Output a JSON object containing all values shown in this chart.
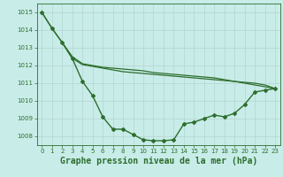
{
  "background_color": "#c8ece8",
  "grid_color": "#b8d8d4",
  "line_color": "#2d6e2d",
  "title": "Graphe pression niveau de la mer (hPa)",
  "title_fontsize": 7,
  "xlim": [
    -0.5,
    23.5
  ],
  "ylim": [
    1007.5,
    1015.5
  ],
  "yticks": [
    1008,
    1009,
    1010,
    1011,
    1012,
    1013,
    1014,
    1015
  ],
  "xticks": [
    0,
    1,
    2,
    3,
    4,
    5,
    6,
    7,
    8,
    9,
    10,
    11,
    12,
    13,
    14,
    15,
    16,
    17,
    18,
    19,
    20,
    21,
    22,
    23
  ],
  "series": [
    {
      "x": [
        0,
        1,
        2,
        3,
        4,
        5,
        6,
        7,
        8,
        9,
        10,
        11,
        12,
        13,
        14,
        15,
        16,
        17,
        18,
        19,
        20,
        21,
        22,
        23
      ],
      "y": [
        1015.0,
        1014.1,
        1013.3,
        1012.4,
        1011.1,
        1010.3,
        1009.1,
        1008.4,
        1008.4,
        1008.1,
        1007.8,
        1007.75,
        1007.75,
        1007.8,
        1008.7,
        1008.8,
        1009.0,
        1009.2,
        1009.1,
        1009.3,
        1009.8,
        1010.5,
        1010.6,
        1010.7
      ],
      "marker": "D",
      "marker_size": 2.0,
      "linewidth": 1.0,
      "zorder": 3
    },
    {
      "x": [
        0,
        1,
        2,
        3,
        4,
        5,
        6,
        7,
        8,
        9,
        10,
        11,
        12,
        13,
        14,
        15,
        16,
        17,
        18,
        19,
        20,
        21,
        22,
        23
      ],
      "y": [
        1015.0,
        1014.1,
        1013.3,
        1012.5,
        1012.1,
        1012.0,
        1011.9,
        1011.85,
        1011.8,
        1011.75,
        1011.7,
        1011.6,
        1011.55,
        1011.5,
        1011.45,
        1011.4,
        1011.35,
        1011.3,
        1011.2,
        1011.1,
        1011.0,
        1010.9,
        1010.8,
        1010.7
      ],
      "marker": null,
      "marker_size": 0,
      "linewidth": 0.9,
      "zorder": 2
    },
    {
      "x": [
        2,
        3,
        4,
        5,
        6,
        7,
        8,
        9,
        10,
        11,
        12,
        13,
        14,
        15,
        16,
        17,
        18,
        19,
        20,
        21,
        22,
        23
      ],
      "y": [
        1013.3,
        1012.4,
        1012.05,
        1011.95,
        1011.85,
        1011.75,
        1011.65,
        1011.6,
        1011.55,
        1011.5,
        1011.45,
        1011.4,
        1011.35,
        1011.3,
        1011.25,
        1011.2,
        1011.15,
        1011.1,
        1011.05,
        1011.0,
        1010.9,
        1010.7
      ],
      "marker": null,
      "marker_size": 0,
      "linewidth": 0.9,
      "zorder": 2
    }
  ]
}
